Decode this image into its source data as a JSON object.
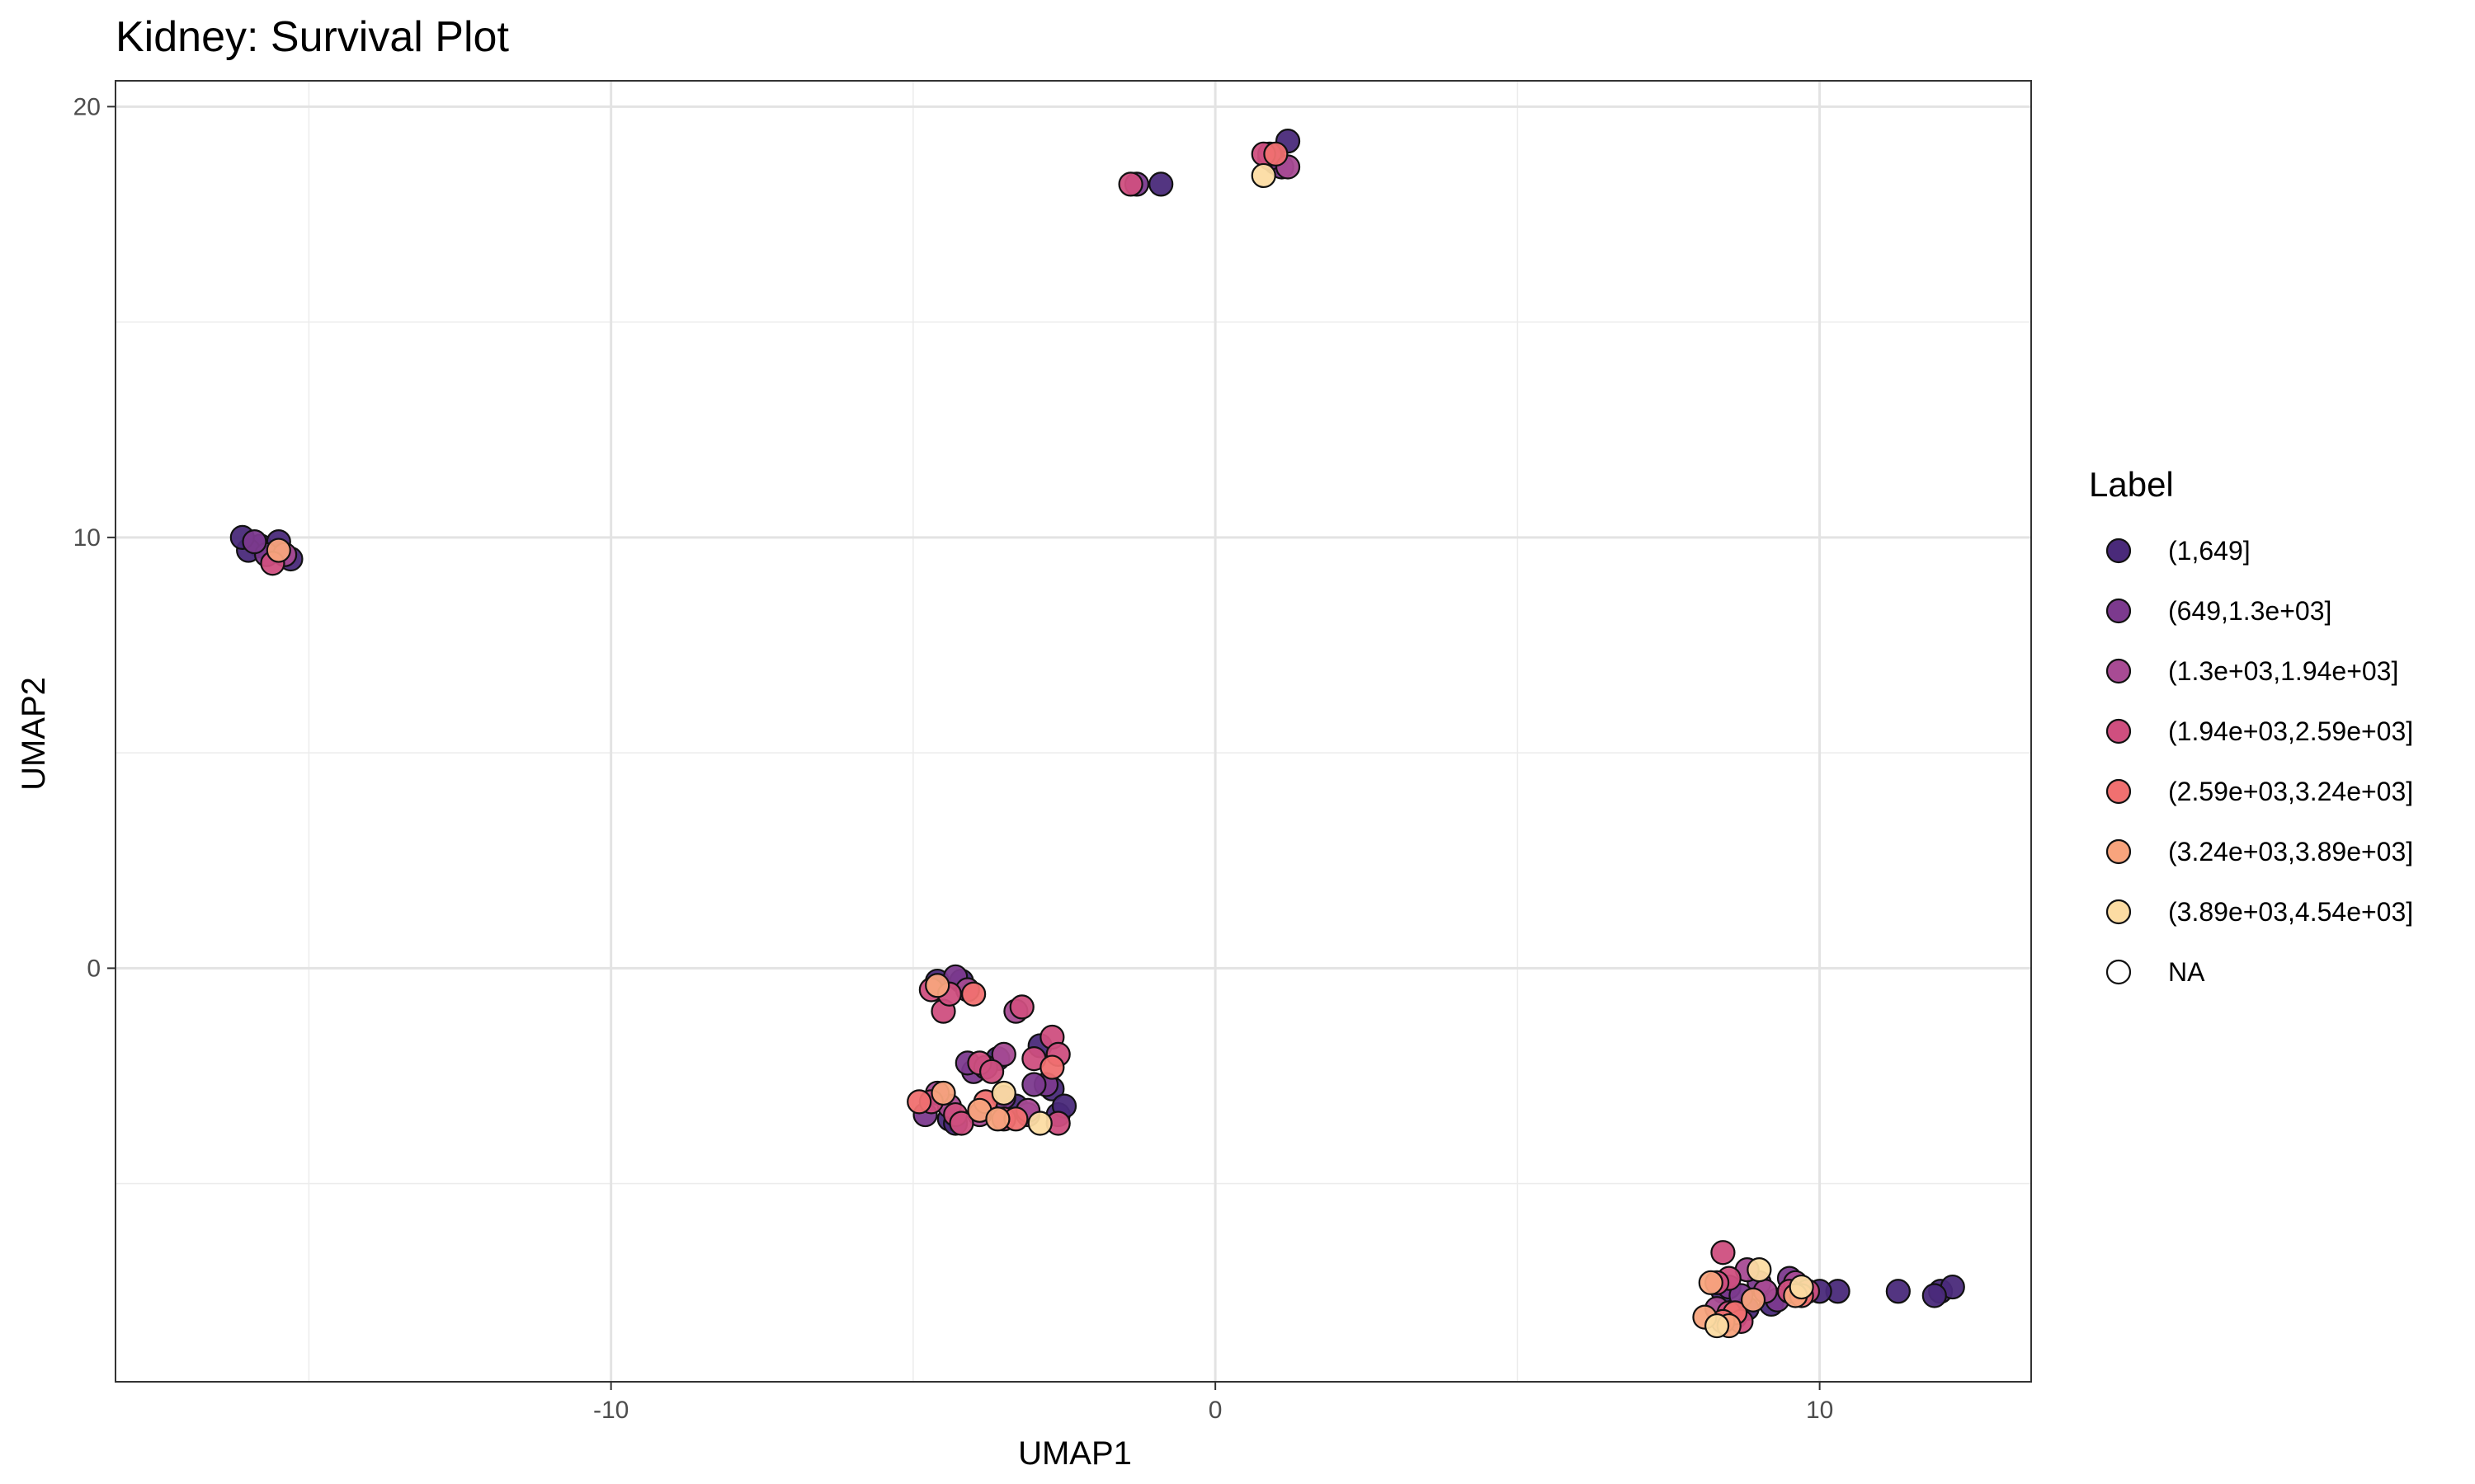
{
  "chart_data": {
    "type": "scatter",
    "title": "Kidney: Survival Plot",
    "xlabel": "UMAP1",
    "ylabel": "UMAP2",
    "xlim": [
      -18.2,
      13.5
    ],
    "ylim": [
      -9.6,
      20.6
    ],
    "x_ticks": [
      -10,
      0,
      10
    ],
    "y_ticks": [
      0,
      10,
      20
    ],
    "x_tick_labels": [
      "-10",
      "0",
      "10"
    ],
    "y_tick_labels": [
      "0",
      "10",
      "20"
    ],
    "x_minor_ticks": [
      -15,
      -5,
      5
    ],
    "y_minor_ticks": [
      -5,
      5,
      15
    ],
    "grid": true,
    "legend": {
      "title": "Label",
      "position": "right",
      "entries": [
        {
          "label": "(1,649]",
          "color": "#4a2a7a"
        },
        {
          "label": "(649,1.3e+03]",
          "color": "#7c3a8e"
        },
        {
          "label": "(1.3e+03,1.94e+03]",
          "color": "#a84b94"
        },
        {
          "label": "(1.94e+03,2.59e+03]",
          "color": "#cf4f7f"
        },
        {
          "label": "(2.59e+03,3.24e+03]",
          "color": "#f07070"
        },
        {
          "label": "(3.24e+03,3.89e+03]",
          "color": "#f8a47d"
        },
        {
          "label": "(3.89e+03,4.54e+03]",
          "color": "#fcdca3"
        },
        {
          "label": "NA",
          "color": "#ffffff"
        }
      ]
    },
    "series": [
      {
        "name": "(1,649]",
        "points": [
          [
            -15.8,
            9.8
          ],
          [
            -16.0,
            9.7
          ],
          [
            -15.5,
            9.9
          ],
          [
            -15.3,
            9.5
          ],
          [
            -16.1,
            10.0
          ],
          [
            1.2,
            19.2
          ],
          [
            1.0,
            18.7
          ],
          [
            -0.9,
            18.2
          ],
          [
            -4.4,
            -3.5
          ],
          [
            -4.6,
            -0.3
          ],
          [
            -3.3,
            -3.2
          ],
          [
            -2.7,
            -2.8
          ],
          [
            -2.6,
            -3.4
          ],
          [
            -4.2,
            -0.3
          ],
          [
            -3.6,
            -2.1
          ],
          [
            -2.9,
            -1.8
          ],
          [
            -4.3,
            -3.6
          ],
          [
            -2.5,
            -3.2
          ],
          [
            8.4,
            -7.5
          ],
          [
            9.2,
            -7.8
          ],
          [
            10.3,
            -7.5
          ],
          [
            12.0,
            -7.5
          ],
          [
            12.2,
            -7.4
          ],
          [
            11.9,
            -7.6
          ],
          [
            8.6,
            -8.1
          ],
          [
            10.0,
            -7.5
          ],
          [
            8.8,
            -7.9
          ],
          [
            11.3,
            -7.5
          ]
        ]
      },
      {
        "name": "(649,1.3e+03]",
        "points": [
          [
            -15.7,
            9.6
          ],
          [
            -15.9,
            9.9
          ],
          [
            1.1,
            18.6
          ],
          [
            0.9,
            18.8
          ],
          [
            -1.3,
            18.2
          ],
          [
            -4.0,
            -2.4
          ],
          [
            -3.5,
            -3.0
          ],
          [
            -3.1,
            -3.4
          ],
          [
            -4.1,
            -2.2
          ],
          [
            -3.8,
            -2.3
          ],
          [
            -2.8,
            -2.7
          ],
          [
            -3.0,
            -2.7
          ],
          [
            -4.3,
            -0.2
          ],
          [
            -4.8,
            -3.4
          ],
          [
            9.0,
            -7.3
          ],
          [
            8.5,
            -7.4
          ],
          [
            9.5,
            -7.2
          ],
          [
            8.7,
            -7.6
          ],
          [
            9.3,
            -7.7
          ]
        ]
      },
      {
        "name": "(1.3e+03,1.94e+03]",
        "points": [
          [
            -15.4,
            9.6
          ],
          [
            0.9,
            18.9
          ],
          [
            1.2,
            18.6
          ],
          [
            -3.5,
            -2.0
          ],
          [
            -4.4,
            -3.2
          ],
          [
            -4.1,
            -0.5
          ],
          [
            -3.3,
            -1.0
          ],
          [
            -3.9,
            -3.4
          ],
          [
            -4.6,
            -2.9
          ],
          [
            -3.1,
            -3.3
          ],
          [
            8.8,
            -7.0
          ],
          [
            9.6,
            -7.3
          ],
          [
            8.3,
            -7.9
          ],
          [
            9.1,
            -7.5
          ]
        ]
      },
      {
        "name": "(1.94e+03,2.59e+03]",
        "points": [
          [
            -15.6,
            9.4
          ],
          [
            -1.4,
            18.2
          ],
          [
            0.8,
            18.9
          ],
          [
            -4.5,
            -1.0
          ],
          [
            -4.7,
            -0.5
          ],
          [
            -3.2,
            -0.9
          ],
          [
            -3.0,
            -2.1
          ],
          [
            -2.7,
            -1.6
          ],
          [
            -2.6,
            -2.0
          ],
          [
            -4.3,
            -3.4
          ],
          [
            -4.2,
            -3.6
          ],
          [
            -3.9,
            -2.2
          ],
          [
            -3.7,
            -2.4
          ],
          [
            -3.5,
            -3.5
          ],
          [
            -4.7,
            -3.1
          ],
          [
            -4.4,
            -0.6
          ],
          [
            8.4,
            -6.6
          ],
          [
            8.5,
            -7.2
          ],
          [
            8.5,
            -8.0
          ],
          [
            8.7,
            -8.2
          ],
          [
            9.5,
            -7.5
          ],
          [
            9.8,
            -7.5
          ],
          [
            8.3,
            -7.3
          ],
          [
            -2.6,
            -3.6
          ]
        ]
      },
      {
        "name": "(2.59e+03,3.24e+03]",
        "points": [
          [
            1.0,
            18.9
          ],
          [
            -4.9,
            -3.1
          ],
          [
            -4.0,
            -0.6
          ],
          [
            -2.7,
            -2.3
          ],
          [
            -3.3,
            -3.5
          ],
          [
            8.6,
            -8.0
          ],
          [
            9.7,
            -7.6
          ],
          [
            8.4,
            -8.2
          ],
          [
            -3.8,
            -3.1
          ]
        ]
      },
      {
        "name": "(3.24e+03,3.89e+03]",
        "points": [
          [
            -15.5,
            9.7
          ],
          [
            -4.6,
            -0.4
          ],
          [
            -3.9,
            -3.3
          ],
          [
            -3.6,
            -3.5
          ],
          [
            -4.5,
            -2.9
          ],
          [
            8.2,
            -7.3
          ],
          [
            8.1,
            -8.1
          ],
          [
            8.5,
            -8.3
          ],
          [
            9.6,
            -7.6
          ],
          [
            8.9,
            -7.7
          ]
        ]
      },
      {
        "name": "(3.89e+03,4.54e+03]",
        "points": [
          [
            0.8,
            18.4
          ],
          [
            -3.5,
            -2.9
          ],
          [
            -2.9,
            -3.6
          ],
          [
            9.0,
            -7.0
          ],
          [
            8.3,
            -8.3
          ],
          [
            9.7,
            -7.4
          ]
        ]
      }
    ]
  }
}
